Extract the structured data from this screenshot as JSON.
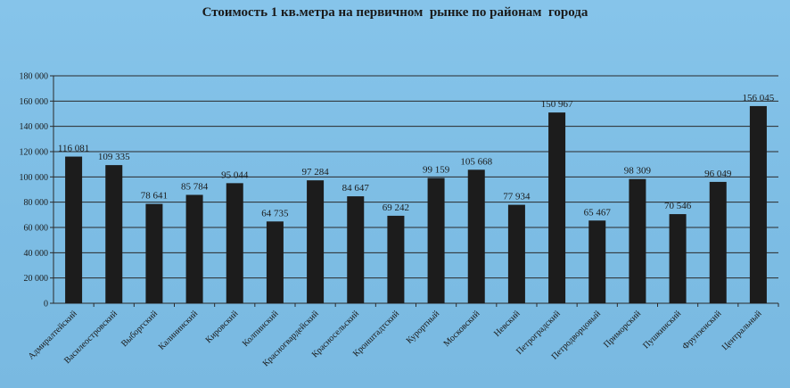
{
  "chart_data": {
    "type": "bar",
    "title": "Стоимость 1 кв.метра на первичном  рынке по районам  города",
    "xlabel": "",
    "ylabel": "",
    "ylim": [
      0,
      180000
    ],
    "y_ticks": [
      "0",
      "20 000",
      "40 000",
      "60 000",
      "80 000",
      "100 000",
      "120 000",
      "140 000",
      "160 000",
      "180 000"
    ],
    "grid": "horizontal",
    "legend": "none",
    "bar_color": "#1c1c1c",
    "categories": [
      "Адмиралтейский",
      "Василеостровский",
      "Выборгский",
      "Калининский",
      "Кировский",
      "Колпинский",
      "Красногвардейский",
      "Красносельский",
      "Кронштадтский",
      "Курортный",
      "Московский",
      "Невский",
      "Петроградский",
      "Петродворцовый",
      "Приморский",
      "Пушкинский",
      "Фрунзенский",
      "Центральный"
    ],
    "values": [
      116081,
      109335,
      78641,
      85784,
      95044,
      64735,
      97284,
      84647,
      69242,
      99159,
      105668,
      77934,
      150967,
      65467,
      98309,
      70546,
      96049,
      156045
    ],
    "data_labels": [
      "116 081",
      "109 335",
      "78 641",
      "85 784",
      "95 044",
      "64 735",
      "97 284",
      "84 647",
      "69 242",
      "99 159",
      "105 668",
      "77 934",
      "150 967",
      "65 467",
      "98 309",
      "70 546",
      "96 049",
      "156 045"
    ]
  }
}
